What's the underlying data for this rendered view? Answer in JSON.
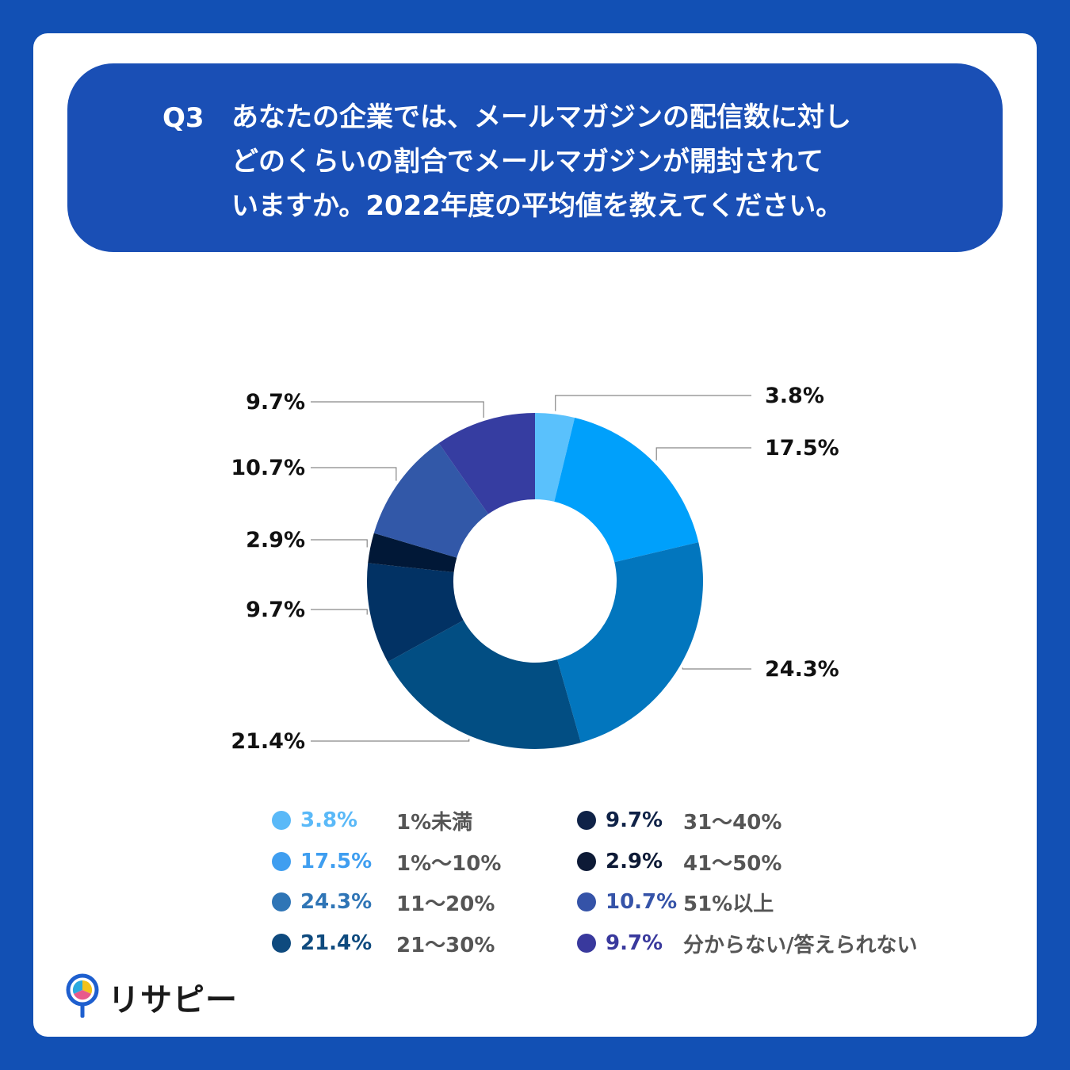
{
  "question": {
    "number": "Q3",
    "lines": [
      "あなたの企業では、メールマガジンの配信数に対し",
      "どのくらいの割合でメールマガジンが開封されて",
      "いますか。2022年度の平均値を教えてください。"
    ]
  },
  "chart_data": {
    "type": "pie",
    "style": "donut",
    "unit": "%",
    "slices": [
      {
        "label": "1%未満",
        "value": 3.8,
        "display": "3.8%",
        "color": "#5ac1fc",
        "legend_color": "#5ab9f8"
      },
      {
        "label": "1%〜10%",
        "value": 17.5,
        "display": "17.5%",
        "color": "#00a0fb",
        "legend_color": "#3f9ef0"
      },
      {
        "label": "11〜20%",
        "value": 24.3,
        "display": "24.3%",
        "color": "#0276be",
        "legend_color": "#2f75b6"
      },
      {
        "label": "21〜30%",
        "value": 21.4,
        "display": "21.4%",
        "color": "#024e83",
        "legend_color": "#0e4a7e"
      },
      {
        "label": "31〜40%",
        "value": 9.7,
        "display": "9.7%",
        "color": "#023264",
        "legend_color": "#0f2247"
      },
      {
        "label": "41〜50%",
        "value": 2.9,
        "display": "2.9%",
        "color": "#011837",
        "legend_color": "#0d1a36"
      },
      {
        "label": "51%以上",
        "value": 10.7,
        "display": "10.7%",
        "color": "#3258a8",
        "legend_color": "#3553a8"
      },
      {
        "label": "分からない/答えられない",
        "value": 9.7,
        "display": "9.7%",
        "color": "#363da1",
        "legend_color": "#39399d"
      }
    ]
  },
  "brand": {
    "name": "リサピー"
  }
}
